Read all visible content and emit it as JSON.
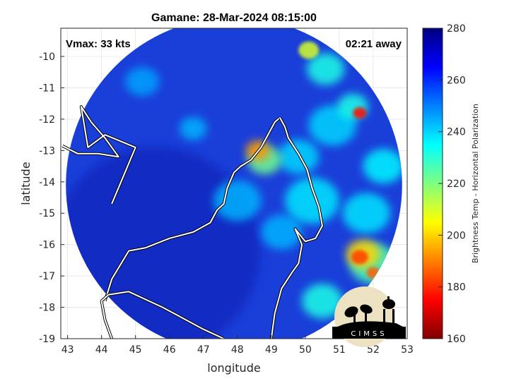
{
  "chart_data": {
    "type": "heatmap",
    "title": "Gamane: 28-Mar-2024 08:15:00",
    "xlabel": "longitude",
    "ylabel": "latitude",
    "xlim": [
      42.8,
      53
    ],
    "ylim": [
      -19,
      -9.1
    ],
    "x_ticks": [
      "43",
      "44",
      "45",
      "46",
      "47",
      "48",
      "49",
      "50",
      "51",
      "52",
      "53"
    ],
    "y_ticks": [
      "-10",
      "-11",
      "-12",
      "-13",
      "-14",
      "-15",
      "-16",
      "-17",
      "-18",
      "-19"
    ],
    "annotations": {
      "vmax": "Vmax: 33 kts",
      "time_away": "02:21 away"
    },
    "colorbar": {
      "label": "Brightness Temp - Horizontal Polarization",
      "range": [
        160,
        280
      ],
      "ticks": [
        "280",
        "260",
        "240",
        "220",
        "200",
        "180",
        "160"
      ],
      "colormap": [
        "#800000",
        "#ff0000",
        "#ff8000",
        "#ffff00",
        "#80ff80",
        "#00ffff",
        "#0080ff",
        "#0000ff",
        "#000080"
      ]
    },
    "swath": {
      "center_lon": 47.9,
      "center_lat": -14.1,
      "radius_deg": 4.95
    },
    "hotspots": [
      {
        "lon": 48.6,
        "lat": -13.0,
        "r": 0.35,
        "value": 192
      },
      {
        "lon": 48.8,
        "lat": -13.3,
        "r": 0.5,
        "value": 222
      },
      {
        "lon": 51.6,
        "lat": -11.8,
        "r": 0.2,
        "value": 176
      },
      {
        "lon": 51.4,
        "lat": -11.6,
        "r": 0.45,
        "value": 232
      },
      {
        "lon": 51.7,
        "lat": -16.3,
        "r": 0.5,
        "value": 200
      },
      {
        "lon": 51.6,
        "lat": -16.4,
        "r": 0.25,
        "value": 182
      },
      {
        "lon": 52.0,
        "lat": -16.9,
        "r": 0.2,
        "value": 186
      },
      {
        "lon": 52.0,
        "lat": -16.6,
        "r": 0.7,
        "value": 226
      },
      {
        "lon": 50.1,
        "lat": -9.8,
        "r": 0.3,
        "value": 210
      },
      {
        "lon": 50.6,
        "lat": -10.4,
        "r": 0.55,
        "value": 232
      },
      {
        "lon": 50.2,
        "lat": -14.6,
        "r": 0.8,
        "value": 238
      },
      {
        "lon": 51.8,
        "lat": -15.0,
        "r": 0.7,
        "value": 238
      },
      {
        "lon": 50.5,
        "lat": -17.8,
        "r": 0.6,
        "value": 232
      },
      {
        "lon": 49.8,
        "lat": -13.2,
        "r": 0.6,
        "value": 240
      },
      {
        "lon": 46.7,
        "lat": -12.3,
        "r": 0.4,
        "value": 244
      },
      {
        "lon": 45.2,
        "lat": -10.8,
        "r": 0.5,
        "value": 246
      },
      {
        "lon": 52.3,
        "lat": -13.5,
        "r": 0.6,
        "value": 236
      },
      {
        "lon": 48.0,
        "lat": -14.6,
        "r": 0.7,
        "value": 244
      },
      {
        "lon": 49.3,
        "lat": -15.6,
        "r": 0.6,
        "value": 244
      },
      {
        "lon": 50.8,
        "lat": -12.2,
        "r": 0.7,
        "value": 240
      }
    ],
    "coastline": [
      [
        42.85,
        -12.85
      ],
      [
        43.3,
        -13.1
      ],
      [
        43.9,
        -13.1
      ],
      [
        44.5,
        -13.2
      ],
      [
        44.1,
        -12.6
      ],
      [
        43.7,
        -12.1
      ],
      [
        43.4,
        -11.6
      ],
      [
        43.6,
        -12.9
      ],
      [
        44.1,
        -12.5
      ],
      [
        45.0,
        -12.9
      ],
      [
        44.3,
        -14.7
      ]
    ],
    "madagascar": [
      [
        49.25,
        -11.95
      ],
      [
        49.4,
        -12.25
      ],
      [
        49.5,
        -12.6
      ],
      [
        49.8,
        -13.1
      ],
      [
        50.05,
        -13.6
      ],
      [
        50.2,
        -14.2
      ],
      [
        50.4,
        -14.8
      ],
      [
        50.5,
        -15.4
      ],
      [
        50.3,
        -15.8
      ],
      [
        50.0,
        -15.9
      ],
      [
        49.7,
        -15.5
      ],
      [
        49.9,
        -16.0
      ],
      [
        49.8,
        -16.6
      ],
      [
        49.6,
        -16.9
      ],
      [
        49.3,
        -17.4
      ],
      [
        49.1,
        -18.2
      ],
      [
        49.0,
        -19.0
      ]
    ],
    "madagascar_west": [
      [
        47.6,
        -19.0
      ],
      [
        47.0,
        -18.7
      ],
      [
        45.8,
        -18.0
      ],
      [
        44.8,
        -17.5
      ],
      [
        44.2,
        -17.6
      ],
      [
        44.0,
        -17.8
      ],
      [
        44.1,
        -18.4
      ],
      [
        44.3,
        -19.0
      ]
    ],
    "northwest_coast": [
      [
        44.1,
        -17.8
      ],
      [
        44.3,
        -17.1
      ],
      [
        44.8,
        -16.2
      ],
      [
        45.3,
        -16.1
      ],
      [
        46.0,
        -15.8
      ],
      [
        46.7,
        -15.6
      ],
      [
        47.2,
        -15.3
      ],
      [
        47.4,
        -14.9
      ],
      [
        47.6,
        -14.7
      ],
      [
        47.7,
        -14.2
      ],
      [
        47.9,
        -13.7
      ],
      [
        48.1,
        -13.5
      ],
      [
        48.4,
        -13.3
      ],
      [
        48.7,
        -12.9
      ],
      [
        48.9,
        -12.5
      ],
      [
        49.1,
        -12.1
      ],
      [
        49.25,
        -11.95
      ]
    ]
  },
  "logo_text": "CIMSS",
  "colors": {
    "frame": "#262626",
    "coast": "#ffffff",
    "background": "#ffffff"
  }
}
